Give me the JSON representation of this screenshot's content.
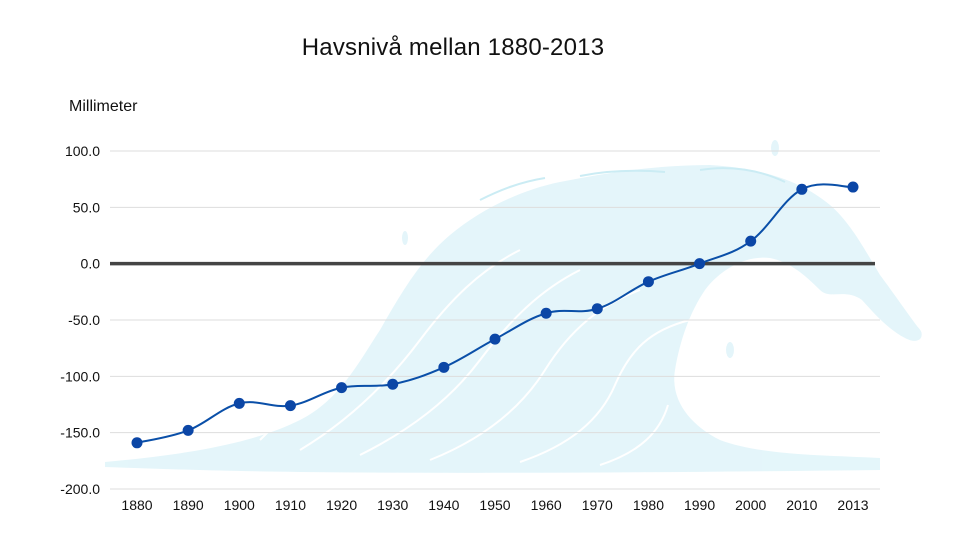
{
  "chart_data": {
    "type": "line",
    "title": "Havsnivå mellan 1880-2013",
    "xlabel": "",
    "ylabel": "Millimeter",
    "categories": [
      "1880",
      "1890",
      "1900",
      "1910",
      "1920",
      "1930",
      "1940",
      "1950",
      "1960",
      "1970",
      "1980",
      "1990",
      "2000",
      "2010",
      "2013"
    ],
    "series": [
      {
        "values": [
          -159,
          -148,
          -124,
          -126,
          -110,
          -107,
          -92,
          -67,
          -44,
          -40,
          -16,
          0,
          20,
          66,
          68
        ]
      }
    ],
    "y_ticks": [
      "100.0",
      "50.0",
      "0.0",
      "-50.0",
      "-100.0",
      "-150.0",
      "-200.0"
    ],
    "ylim": [
      -200,
      100
    ],
    "grid": true,
    "legend": "none",
    "colors": {
      "line": "#0a4fa8",
      "marker": "#0b46a6",
      "zero_line": "#444444",
      "grid": "#dddddd",
      "wave": "#def3f8"
    },
    "background_image": "wave-illustration"
  }
}
